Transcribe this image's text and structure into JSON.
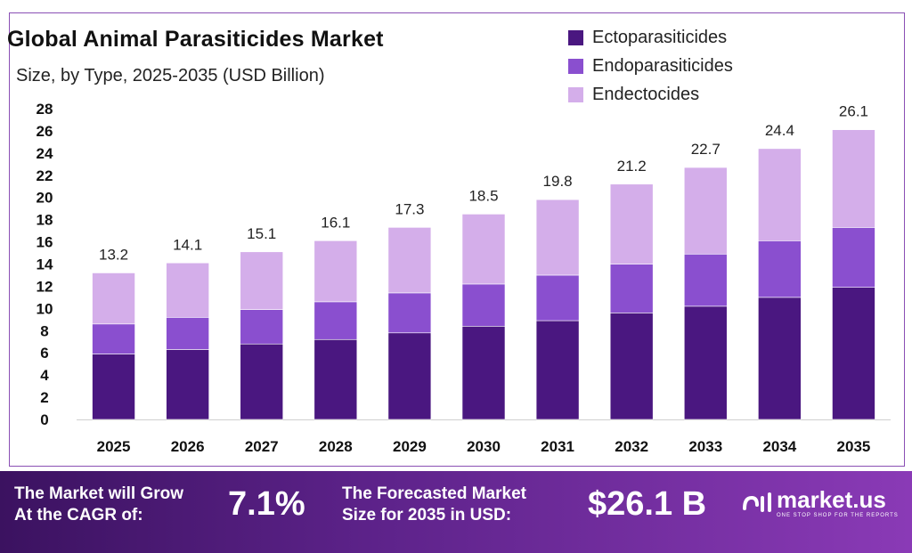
{
  "header": {
    "title": "Global Animal Parasiticides Market",
    "subtitle": "Size, by Type, 2025-2035 (USD Billion)"
  },
  "legend": [
    {
      "label": "Ectoparasiticides",
      "color": "#4a1780"
    },
    {
      "label": "Endoparasiticides",
      "color": "#8a4fcf"
    },
    {
      "label": "Endectocides",
      "color": "#d4aeea"
    }
  ],
  "chart_data": {
    "type": "bar",
    "stacked": true,
    "categories": [
      "2025",
      "2026",
      "2027",
      "2028",
      "2029",
      "2030",
      "2031",
      "2032",
      "2033",
      "2034",
      "2035"
    ],
    "series": [
      {
        "name": "Ectoparasiticides",
        "values": [
          5.9,
          6.3,
          6.8,
          7.2,
          7.8,
          8.4,
          8.9,
          9.6,
          10.2,
          11.0,
          11.9
        ]
      },
      {
        "name": "Endoparasiticides",
        "values": [
          2.7,
          2.9,
          3.1,
          3.4,
          3.6,
          3.8,
          4.1,
          4.4,
          4.7,
          5.1,
          5.4
        ]
      },
      {
        "name": "Endectocides",
        "values": [
          4.6,
          4.9,
          5.2,
          5.5,
          5.9,
          6.3,
          6.8,
          7.2,
          7.8,
          8.3,
          8.8
        ]
      }
    ],
    "totals": [
      "13.2",
      "14.1",
      "15.1",
      "16.1",
      "17.3",
      "18.5",
      "19.8",
      "21.2",
      "22.7",
      "24.4",
      "26.1"
    ],
    "y_ticks": [
      0,
      2,
      4,
      6,
      8,
      10,
      12,
      14,
      16,
      18,
      20,
      22,
      24,
      26,
      28
    ],
    "ylim": [
      0,
      28
    ],
    "grid": false,
    "legend_position": "top-right"
  },
  "banner": {
    "cagr_label_line1": "The Market will Grow",
    "cagr_label_line2": "At the CAGR of:",
    "cagr_value": "7.1%",
    "forecast_label_line1": "The Forecasted Market",
    "forecast_label_line2": "Size for 2035 in USD:",
    "forecast_value": "$26.1 B",
    "brand_name": "market.us",
    "brand_tagline": "ONE STOP SHOP FOR THE REPORTS"
  }
}
